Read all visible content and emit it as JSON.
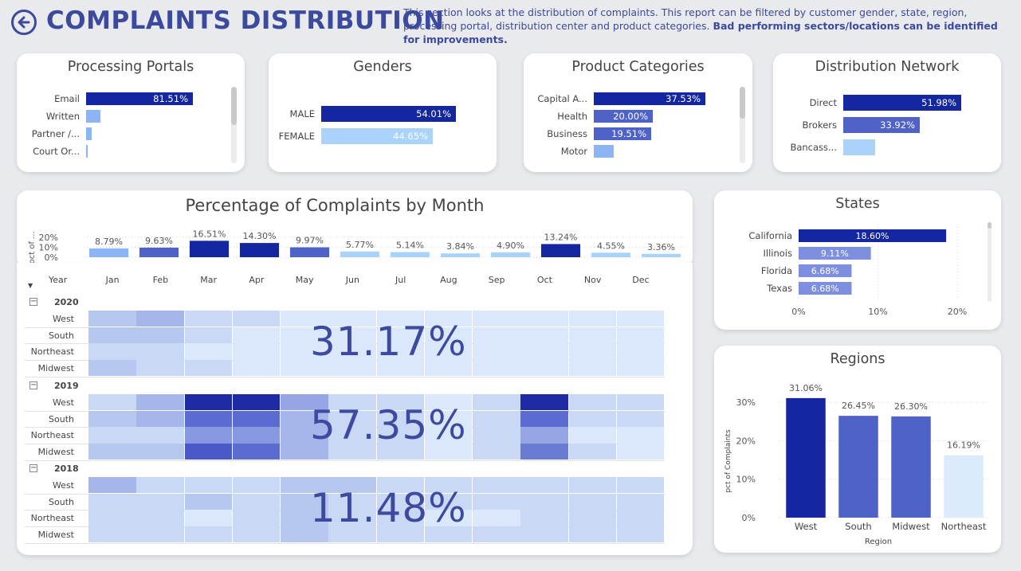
{
  "header": {
    "title": "COMPLAINTS DISTRIBUTION",
    "desc_normal": "This section looks at the distribution of complaints. This report can be filtered by customer gender, state, region, processing portal, distribution center and product categories.",
    "desc_bold": "Bad performing sectors/locations can be identified for improvements."
  },
  "colors": {
    "dark": "#1426a0",
    "mid": "#4e62c8",
    "light": "#8db4f2",
    "pale": "#a9d3fb",
    "paler": "#dcebfb"
  },
  "chart_data": [
    {
      "type": "bar",
      "orientation": "horizontal",
      "title": "Processing Portals",
      "categories": [
        "Email",
        "Written",
        "Partner /...",
        "Court Or..."
      ],
      "values": [
        81.51,
        null,
        null,
        null
      ],
      "value_labels": [
        "81.51%",
        "",
        "",
        ""
      ]
    },
    {
      "type": "bar",
      "orientation": "horizontal",
      "title": "Genders",
      "categories": [
        "MALE",
        "FEMALE"
      ],
      "values": [
        54.01,
        44.65
      ],
      "value_labels": [
        "54.01%",
        "44.65%"
      ]
    },
    {
      "type": "bar",
      "orientation": "horizontal",
      "title": "Product Categories",
      "categories": [
        "Capital A...",
        "Health",
        "Business",
        "Motor"
      ],
      "values": [
        37.53,
        20.0,
        19.51,
        null
      ],
      "value_labels": [
        "37.53%",
        "20.00%",
        "19.51%",
        ""
      ]
    },
    {
      "type": "bar",
      "orientation": "horizontal",
      "title": "Distribution Network",
      "categories": [
        "Direct",
        "Brokers",
        "Bancass..."
      ],
      "values": [
        51.98,
        33.92,
        null
      ],
      "value_labels": [
        "51.98%",
        "33.92%",
        ""
      ]
    },
    {
      "type": "bar",
      "title": "Percentage of Complaints by Month",
      "ylabel": "pct of ...",
      "yticks": [
        "20%",
        "10%",
        "0%"
      ],
      "ylim": [
        0,
        20
      ],
      "categories": [
        "Jan",
        "Feb",
        "Mar",
        "Apr",
        "May",
        "Jun",
        "Jul",
        "Aug",
        "Sep",
        "Oct",
        "Nov",
        "Dec"
      ],
      "values": [
        8.79,
        9.63,
        16.51,
        14.3,
        9.97,
        5.77,
        5.14,
        3.84,
        4.9,
        13.24,
        4.55,
        3.36
      ],
      "value_labels": [
        "8.79%",
        "9.63%",
        "16.51%",
        "14.30%",
        "9.97%",
        "5.77%",
        "5.14%",
        "3.84%",
        "4.90%",
        "13.24%",
        "4.55%",
        "3.36%"
      ]
    },
    {
      "type": "bar",
      "orientation": "horizontal",
      "title": "States",
      "categories": [
        "California",
        "Illinois",
        "Florida",
        "Texas"
      ],
      "values": [
        18.6,
        9.11,
        6.68,
        6.68
      ],
      "value_labels": [
        "18.60%",
        "9.11%",
        "6.68%",
        "6.68%"
      ],
      "xticks": [
        "0%",
        "10%",
        "20%"
      ],
      "xlim": [
        0,
        20
      ]
    },
    {
      "type": "bar",
      "title": "Regions",
      "categories": [
        "West",
        "South",
        "Midwest",
        "Northeast"
      ],
      "values": [
        31.06,
        26.45,
        26.3,
        16.19
      ],
      "value_labels": [
        "31.06%",
        "26.45%",
        "26.30%",
        "16.19%"
      ],
      "ylabel": "pct of Complaints",
      "xlabel": "Region",
      "yticks": [
        "30%",
        "20%",
        "10%",
        "0%"
      ],
      "ylim": [
        0,
        30
      ]
    },
    {
      "type": "heatmap",
      "title": "",
      "col_header": "Year",
      "columns": [
        "Jan",
        "Feb",
        "Mar",
        "Apr",
        "May",
        "Jun",
        "Jul",
        "Aug",
        "Sep",
        "Oct",
        "Nov",
        "Dec"
      ],
      "groups": [
        {
          "year": "2020",
          "total": "31.17%",
          "rows": [
            {
              "name": "West",
              "values": [
                3,
                4,
                2,
                2,
                1,
                1,
                1,
                1,
                1,
                1,
                1,
                1
              ]
            },
            {
              "name": "South",
              "values": [
                3,
                3,
                2,
                1,
                1,
                1,
                1,
                1,
                1,
                1,
                1,
                1
              ]
            },
            {
              "name": "Northeast",
              "values": [
                2,
                2,
                1,
                1,
                1,
                1,
                1,
                1,
                1,
                1,
                1,
                1
              ]
            },
            {
              "name": "Midwest",
              "values": [
                3,
                2,
                2,
                1,
                1,
                1,
                1,
                1,
                1,
                1,
                1,
                1
              ]
            }
          ]
        },
        {
          "year": "2019",
          "total": "57.35%",
          "rows": [
            {
              "name": "West",
              "values": [
                2,
                4,
                10,
                10,
                5,
                2,
                2,
                1,
                2,
                10,
                2,
                2
              ]
            },
            {
              "name": "South",
              "values": [
                3,
                4,
                8,
                8,
                4,
                2,
                2,
                1,
                2,
                8,
                2,
                2
              ]
            },
            {
              "name": "Northeast",
              "values": [
                2,
                2,
                6,
                6,
                4,
                2,
                2,
                1,
                2,
                5,
                1,
                1
              ]
            },
            {
              "name": "Midwest",
              "values": [
                3,
                3,
                9,
                8,
                4,
                2,
                2,
                1,
                2,
                7,
                2,
                1
              ]
            }
          ]
        },
        {
          "year": "2018",
          "total": "11.48%",
          "rows": [
            {
              "name": "West",
              "values": [
                4,
                2,
                2,
                2,
                3,
                3,
                2,
                2,
                2,
                2,
                2,
                2
              ]
            },
            {
              "name": "South",
              "values": [
                2,
                2,
                3,
                2,
                3,
                2,
                2,
                2,
                2,
                2,
                2,
                2
              ]
            },
            {
              "name": "Northeast",
              "values": [
                2,
                2,
                1,
                2,
                3,
                2,
                2,
                1,
                1,
                2,
                2,
                2
              ]
            },
            {
              "name": "Midwest",
              "values": [
                2,
                2,
                2,
                2,
                3,
                2,
                2,
                2,
                2,
                2,
                2,
                2
              ]
            }
          ]
        }
      ]
    }
  ]
}
